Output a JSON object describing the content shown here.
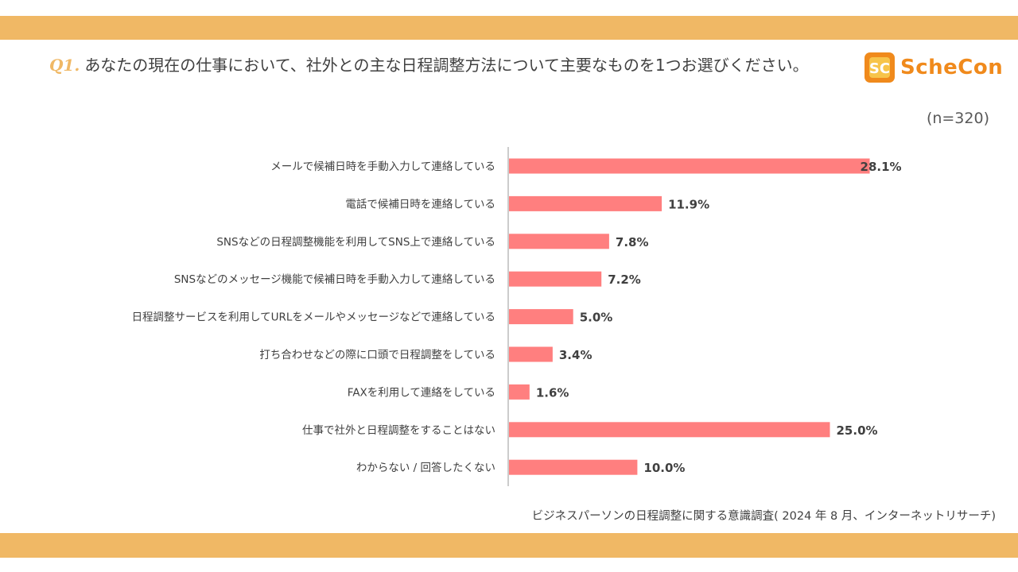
{
  "header": {
    "question_number": "Q1.",
    "question_text": "あなたの現在の仕事において、社外との主な日程調整方法について主要なものを1つお選びください。",
    "sample_size": "(n=320)"
  },
  "logo": {
    "text": "ScheCon",
    "mark": "SC"
  },
  "footer": {
    "source": "ビジネスパーソンの日程調整に関する意識調査( 2024 年 8 月、インターネットリサーチ)"
  },
  "colors": {
    "bar": "#ff7f7f",
    "accent": "#f0b865",
    "logo": "#f08a1c"
  },
  "chart_data": {
    "type": "bar",
    "orientation": "horizontal",
    "title": "",
    "xlabel": "",
    "ylabel": "",
    "xlim": [
      0,
      30
    ],
    "grid": false,
    "categories": [
      "メールで候補日時を手動入力して連絡している",
      "電話で候補日時を連絡している",
      "SNSなどの日程調整機能を利用してSNS上で連絡している",
      "SNSなどのメッセージ機能で候補日時を手動入力して連絡している",
      "日程調整サービスを利用してURLをメールやメッセージなどで連絡している",
      "打ち合わせなどの際に口頭で日程調整をしている",
      "FAXを利用して連絡をしている",
      "仕事で社外と日程調整をすることはない",
      "わからない / 回答したくない"
    ],
    "values": [
      28.1,
      11.9,
      7.8,
      7.2,
      5.0,
      3.4,
      1.6,
      25.0,
      10.0
    ],
    "value_labels": [
      "28.1%",
      "11.9%",
      "7.8%",
      "7.2%",
      "5.0%",
      "3.4%",
      "1.6%",
      "25.0%",
      "10.0%"
    ]
  }
}
